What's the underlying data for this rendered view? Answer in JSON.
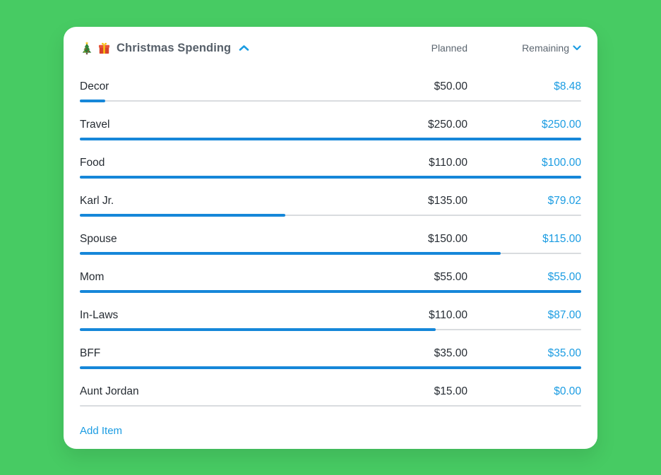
{
  "theme": {
    "background": "#47cb63",
    "card": "#ffffff",
    "title_gray": "#57606a",
    "muted_gray": "#5c6670",
    "text_dark": "#262c33",
    "accent_blue": "#1b9ce2",
    "bar_blue": "#1687d9",
    "track_gray": "#d9dcdf"
  },
  "header": {
    "icons": [
      "christmas-tree",
      "gift"
    ],
    "title": "Christmas Spending",
    "collapse_icon": "chevron-up",
    "planned_label": "Planned",
    "remaining_label": "Remaining",
    "remaining_sort_icon": "chevron-down"
  },
  "items": [
    {
      "name": "Decor",
      "planned": "$50.00",
      "remaining": "$8.48",
      "progress_pct": 5
    },
    {
      "name": "Travel",
      "planned": "$250.00",
      "remaining": "$250.00",
      "progress_pct": 100
    },
    {
      "name": "Food",
      "planned": "$110.00",
      "remaining": "$100.00",
      "progress_pct": 100
    },
    {
      "name": "Karl Jr.",
      "planned": "$135.00",
      "remaining": "$79.02",
      "progress_pct": 41
    },
    {
      "name": "Spouse",
      "planned": "$150.00",
      "remaining": "$115.00",
      "progress_pct": 84
    },
    {
      "name": "Mom",
      "planned": "$55.00",
      "remaining": "$55.00",
      "progress_pct": 100
    },
    {
      "name": "In-Laws",
      "planned": "$110.00",
      "remaining": "$87.00",
      "progress_pct": 71
    },
    {
      "name": "BFF",
      "planned": "$35.00",
      "remaining": "$35.00",
      "progress_pct": 100
    },
    {
      "name": "Aunt Jordan",
      "planned": "$15.00",
      "remaining": "$0.00",
      "progress_pct": 0
    }
  ],
  "footer": {
    "add_item_label": "Add Item"
  }
}
